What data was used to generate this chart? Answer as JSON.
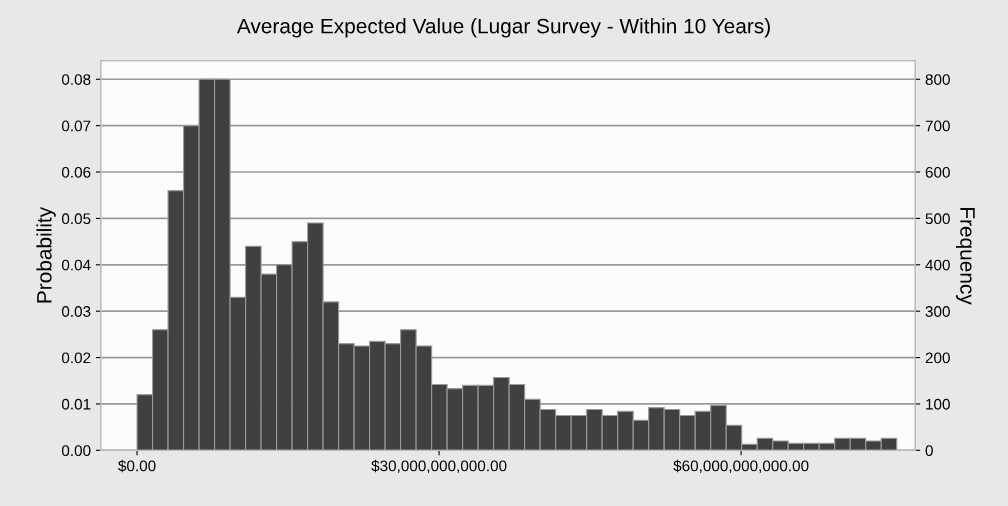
{
  "chart_data": {
    "type": "histogram",
    "title": "Average Expected Value (Lugar Survey - Within 10 Years)",
    "ylabel": "Probability",
    "y2label": "Frequency",
    "bins": [
      0,
      1540000000,
      3080000000,
      4620000000,
      6160000000,
      7700000000,
      9240000000,
      10780000000,
      12320000000,
      13860000000,
      15400000000,
      16940000000,
      18480000000,
      20020000000,
      21560000000,
      23100000000,
      24640000000,
      26180000000,
      27720000000,
      29260000000,
      30800000000,
      32340000000,
      33880000000,
      35420000000,
      36960000000,
      38500000000,
      40040000000,
      41580000000,
      43120000000,
      44660000000,
      46200000000,
      47740000000,
      49280000000,
      50820000000,
      52360000000,
      53900000000,
      55440000000,
      56980000000,
      58520000000,
      60060000000,
      61600000000,
      63140000000,
      64680000000,
      66220000000,
      67760000000,
      69300000000,
      70840000000,
      72380000000,
      73920000000,
      75460000000
    ],
    "values": [
      0.012,
      0.026,
      0.056,
      0.07,
      0.08,
      0.08,
      0.033,
      0.044,
      0.038,
      0.04,
      0.045,
      0.049,
      0.032,
      0.023,
      0.0225,
      0.0235,
      0.023,
      0.026,
      0.0225,
      0.0142,
      0.0133,
      0.014,
      0.014,
      0.0157,
      0.0142,
      0.011,
      0.0088,
      0.0075,
      0.0075,
      0.0088,
      0.0075,
      0.0084,
      0.0065,
      0.0092,
      0.0088,
      0.0075,
      0.0084,
      0.0097,
      0.0054,
      0.0013,
      0.0026,
      0.002,
      0.0015,
      0.0015,
      0.0015,
      0.0026,
      0.0026,
      0.002,
      0.0026
    ],
    "color": "#404040",
    "xlim": [
      -3600000000,
      77300000000
    ],
    "xticks": [
      {
        "value": 0,
        "label": "$0.00"
      },
      {
        "value": 30000000000,
        "label": "$30,000,000,000.00"
      },
      {
        "value": 60000000000,
        "label": "$60,000,000,000.00"
      }
    ],
    "ylim": [
      0,
      0.084
    ],
    "yticks": [
      {
        "value": 0,
        "label": "0.00"
      },
      0.01,
      0.02,
      0.03,
      0.04,
      0.05,
      0.06,
      0.07,
      0.08
    ],
    "y2lim": [
      0,
      840
    ],
    "y2ticks": [
      0,
      100,
      200,
      300,
      400,
      500,
      600,
      700,
      800
    ],
    "grid": "y",
    "legend": false
  }
}
